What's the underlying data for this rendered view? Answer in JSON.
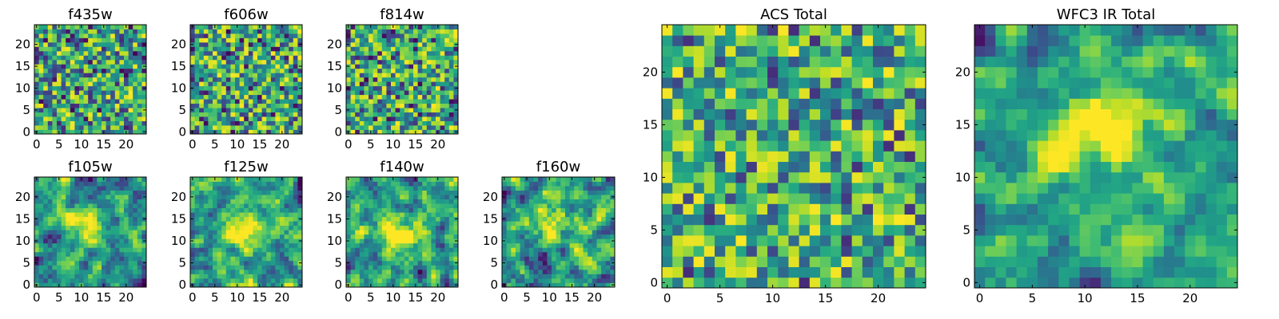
{
  "figure": {
    "description_title": ""
  },
  "chart_data": [
    {
      "type": "heatmap",
      "title": "f435w",
      "grid_size": 25,
      "xticks": [
        0,
        5,
        10,
        15,
        20
      ],
      "yticks": [
        0,
        5,
        10,
        15,
        20
      ],
      "xlim": [
        0,
        24
      ],
      "ylim": [
        0,
        24
      ],
      "colormap": "viridis",
      "seed": 11,
      "smooth": 0
    },
    {
      "type": "heatmap",
      "title": "f606w",
      "grid_size": 25,
      "xticks": [
        0,
        5,
        10,
        15,
        20
      ],
      "yticks": [
        0,
        5,
        10,
        15,
        20
      ],
      "xlim": [
        0,
        24
      ],
      "ylim": [
        0,
        24
      ],
      "colormap": "viridis",
      "seed": 23,
      "smooth": 0
    },
    {
      "type": "heatmap",
      "title": "f814w",
      "grid_size": 25,
      "xticks": [
        0,
        5,
        10,
        15,
        20
      ],
      "yticks": [
        0,
        5,
        10,
        15,
        20
      ],
      "xlim": [
        0,
        24
      ],
      "ylim": [
        0,
        24
      ],
      "colormap": "viridis",
      "seed": 37,
      "smooth": 0
    },
    {
      "type": "heatmap",
      "title": "f105w",
      "grid_size": 25,
      "xticks": [
        0,
        5,
        10,
        15,
        20
      ],
      "yticks": [
        0,
        5,
        10,
        15,
        20
      ],
      "xlim": [
        0,
        24
      ],
      "ylim": [
        0,
        24
      ],
      "colormap": "viridis",
      "seed": 41,
      "smooth": 1,
      "source": {
        "x": 12,
        "y": 13,
        "amp": 0.5,
        "sigma": 3
      }
    },
    {
      "type": "heatmap",
      "title": "f125w",
      "grid_size": 25,
      "xticks": [
        0,
        5,
        10,
        15,
        20
      ],
      "yticks": [
        0,
        5,
        10,
        15,
        20
      ],
      "xlim": [
        0,
        24
      ],
      "ylim": [
        0,
        24
      ],
      "colormap": "viridis",
      "seed": 53,
      "smooth": 1,
      "source": {
        "x": 12,
        "y": 12,
        "amp": 0.4,
        "sigma": 3.5
      }
    },
    {
      "type": "heatmap",
      "title": "f140w",
      "grid_size": 25,
      "xticks": [
        0,
        5,
        10,
        15,
        20
      ],
      "yticks": [
        0,
        5,
        10,
        15,
        20
      ],
      "xlim": [
        0,
        24
      ],
      "ylim": [
        0,
        24
      ],
      "colormap": "viridis",
      "seed": 67,
      "smooth": 1,
      "source": {
        "x": 12,
        "y": 12,
        "amp": 0.4,
        "sigma": 3
      }
    },
    {
      "type": "heatmap",
      "title": "f160w",
      "grid_size": 25,
      "xticks": [
        0,
        5,
        10,
        15,
        20
      ],
      "yticks": [
        0,
        5,
        10,
        15,
        20
      ],
      "xlim": [
        0,
        24
      ],
      "ylim": [
        0,
        24
      ],
      "colormap": "viridis",
      "seed": 79,
      "smooth": 1,
      "source": {
        "x": 11,
        "y": 14,
        "amp": 0.45,
        "sigma": 3
      }
    },
    {
      "type": "heatmap",
      "title": "ACS Total",
      "grid_size": 25,
      "xticks": [
        0,
        5,
        10,
        15,
        20
      ],
      "yticks": [
        0,
        5,
        10,
        15,
        20
      ],
      "xlim": [
        0,
        24
      ],
      "ylim": [
        0,
        24
      ],
      "colormap": "viridis",
      "seed": 97,
      "smooth": 0,
      "base": 0.55
    },
    {
      "type": "heatmap",
      "title": "WFC3 IR Total",
      "grid_size": 25,
      "xticks": [
        0,
        5,
        10,
        15,
        20
      ],
      "yticks": [
        0,
        5,
        10,
        15,
        20
      ],
      "xlim": [
        0,
        24
      ],
      "ylim": [
        0,
        24
      ],
      "colormap": "viridis",
      "seed": 103,
      "smooth": 1,
      "base": 0.5,
      "source": {
        "x": 12,
        "y": 14,
        "amp": 0.55,
        "sigma": 3
      }
    }
  ]
}
